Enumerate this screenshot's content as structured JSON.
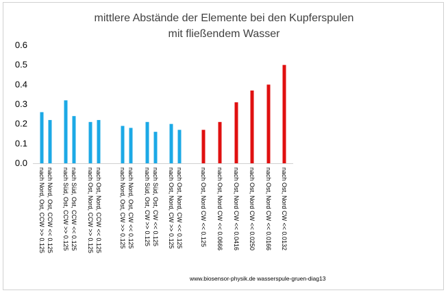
{
  "chart_data": {
    "type": "bar",
    "title_lines": [
      "mittlere Abstände der Elemente bei den Kupferspulen",
      "mit fließendem Wasser"
    ],
    "ylim": [
      0,
      0.6
    ],
    "yticks": [
      "0.0",
      "0.1",
      "0.2",
      "0.3",
      "0.4",
      "0.5",
      "0.6"
    ],
    "grid": false,
    "legend": "none",
    "colors": {
      "cyan": "#1ca9e6",
      "red": "#e01010"
    },
    "bars": [
      {
        "value": 0.26,
        "color": "cyan"
      },
      {
        "value": 0.22,
        "color": "cyan"
      },
      {
        "value": 0.32,
        "color": "cyan"
      },
      {
        "value": 0.24,
        "color": "cyan"
      },
      {
        "value": 0.21,
        "color": "cyan"
      },
      {
        "value": 0.22,
        "color": "cyan"
      },
      {
        "value": 0.19,
        "color": "cyan"
      },
      {
        "value": 0.18,
        "color": "cyan"
      },
      {
        "value": 0.21,
        "color": "cyan"
      },
      {
        "value": 0.16,
        "color": "cyan"
      },
      {
        "value": 0.2,
        "color": "cyan"
      },
      {
        "value": 0.17,
        "color": "cyan"
      },
      {
        "value": 0.17,
        "color": "red"
      },
      {
        "value": 0.21,
        "color": "red"
      },
      {
        "value": 0.31,
        "color": "red"
      },
      {
        "value": 0.37,
        "color": "red"
      },
      {
        "value": 0.4,
        "color": "red"
      },
      {
        "value": 0.5,
        "color": "red"
      }
    ],
    "category_labels": [
      "nach Nord, Ost, CCW >> 0.125",
      "nach Nord, Ost, CCW << 0.125",
      "nach Süd, Ost, CCW >> 0.125",
      "nach Süd, Ost, CCW << 0.125",
      "nach Ost, Nord, CCW >> 0.125",
      "nach Ost, Nord, CCW << 0.125",
      "nach Nord, Ost, CW >> 0.125",
      "nach Nord, Ost, CW << 0.125",
      "nach Süd, Ost, CW >> 0.125",
      "nach Süd, Ost, CW << 0.125",
      "nach Ost, Nord, CW >> 0.125",
      "nach Ost, Nord, CW << 0.125",
      "nach Ost, Nord CW << 0.125",
      "nach Ost, Nord CW << 0.0666",
      "nach Ost, Nord CW << 0.0416",
      "nach Ost, Nord CW << 0.0250",
      "nach Ost, Nord CW << 0.0166",
      "nach Ost, Nord CW << 0.0132"
    ]
  },
  "footer": "www.biosensor-physik.de  wasserspule-gruen-diag13"
}
